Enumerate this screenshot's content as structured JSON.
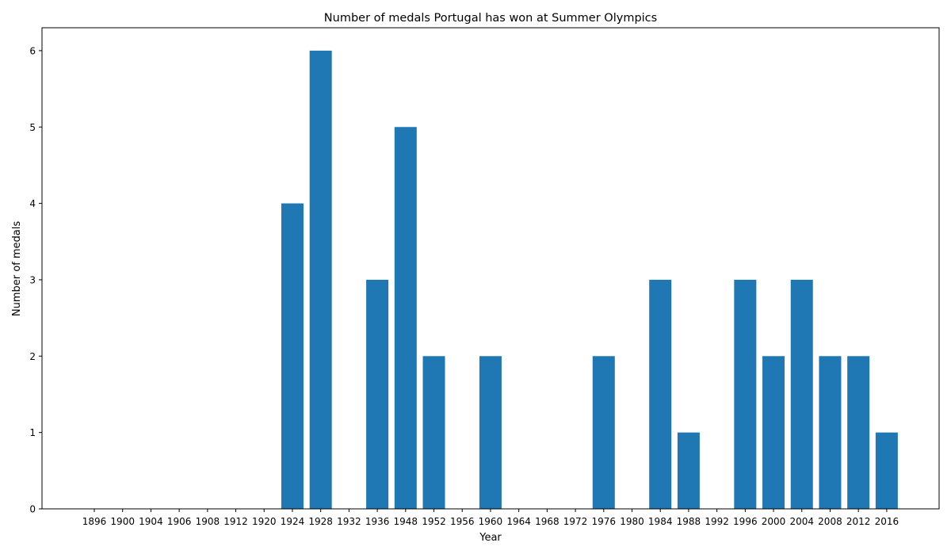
{
  "chart_data": {
    "type": "bar",
    "title": "Number of medals Portugal has won at Summer Olympics",
    "xlabel": "Year",
    "ylabel": "Number of medals",
    "categories": [
      "1896",
      "1900",
      "1904",
      "1906",
      "1908",
      "1912",
      "1920",
      "1924",
      "1928",
      "1932",
      "1936",
      "1948",
      "1952",
      "1956",
      "1960",
      "1964",
      "1968",
      "1972",
      "1976",
      "1980",
      "1984",
      "1988",
      "1992",
      "1996",
      "2000",
      "2004",
      "2008",
      "2012",
      "2016"
    ],
    "values": [
      0,
      0,
      0,
      0,
      0,
      0,
      0,
      4,
      6,
      0,
      3,
      5,
      2,
      0,
      2,
      0,
      0,
      0,
      2,
      0,
      3,
      1,
      0,
      3,
      2,
      3,
      2,
      2,
      1
    ],
    "ylim": [
      0,
      6.3
    ],
    "yticks": [
      0,
      1,
      2,
      3,
      4,
      5,
      6
    ],
    "grid": false,
    "colors": {
      "bar": "#1f77b4",
      "axis": "#000000"
    }
  }
}
